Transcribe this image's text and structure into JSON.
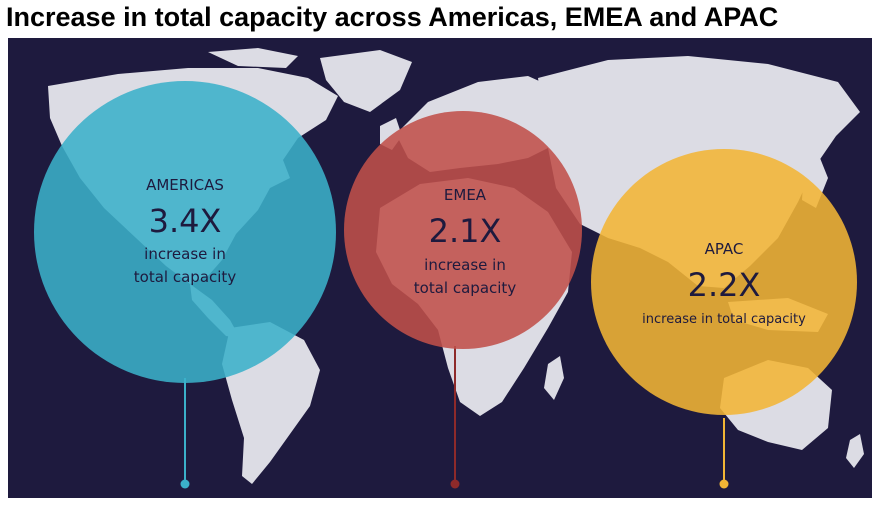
{
  "title": "Increase in total capacity across Americas, EMEA and APAC",
  "colors": {
    "background": "#1e1a3e",
    "land": "#dcdce4",
    "americas": "#3bb0c9",
    "emea": "#c0504a",
    "apac": "#f2b535",
    "text": "#1e1a3e"
  },
  "regions": [
    {
      "id": "americas",
      "name": "AMERICAS",
      "value": "3.4X",
      "desc_line1": "increase in",
      "desc_line2": "total capacity"
    },
    {
      "id": "emea",
      "name": "EMEA",
      "value": "2.1X",
      "desc_line1": "increase in",
      "desc_line2": "total capacity"
    },
    {
      "id": "apac",
      "name": "APAC",
      "value": "2.2X",
      "desc_line1": "increase in total capacity",
      "desc_line2": ""
    }
  ]
}
